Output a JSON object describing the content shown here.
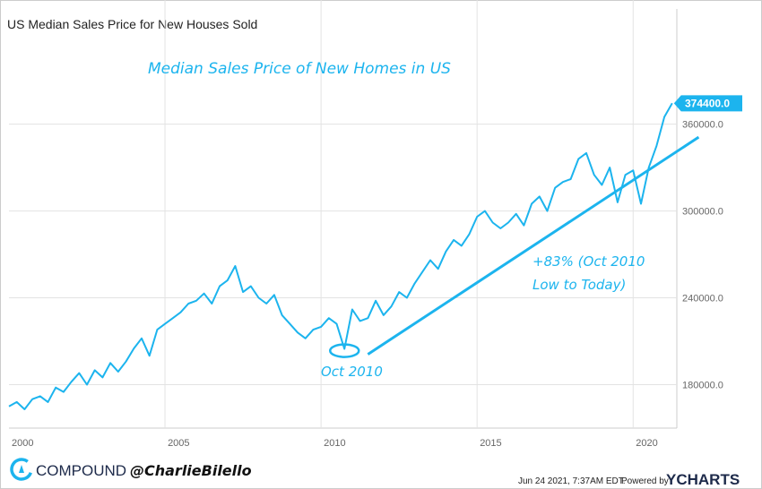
{
  "chart_data": {
    "type": "line",
    "title": "US Median Sales Price for New Houses Sold",
    "xlabel": "",
    "ylabel": "",
    "xlim": [
      2000,
      2021.4
    ],
    "ylim": [
      150000,
      421000
    ],
    "grid": true,
    "x_ticks": [
      "2000",
      "2005",
      "2010",
      "2015",
      "2020"
    ],
    "y_ticks": [
      "180000.0",
      "240000.0",
      "300000.0",
      "360000.0"
    ],
    "y_axis_side": "right",
    "line_color": "#1cb4ee",
    "x_start": 2000,
    "x_step_years": 0.25,
    "values": [
      165000,
      168000,
      163000,
      170000,
      172000,
      168000,
      178000,
      175000,
      182000,
      188000,
      180000,
      190000,
      185000,
      195000,
      189000,
      196000,
      205000,
      212000,
      200000,
      218000,
      222000,
      226000,
      230000,
      236000,
      238000,
      243000,
      236000,
      248000,
      252000,
      262000,
      244000,
      248000,
      240000,
      236000,
      242000,
      228000,
      222000,
      216000,
      212000,
      218000,
      220000,
      226000,
      222000,
      204700,
      232000,
      224000,
      226000,
      238000,
      228000,
      234000,
      244000,
      240000,
      250000,
      258000,
      266000,
      260000,
      272000,
      280000,
      276000,
      284000,
      296000,
      300000,
      292000,
      288000,
      292000,
      298000,
      290000,
      305000,
      310000,
      300000,
      316000,
      320000,
      322000,
      336000,
      340000,
      325000,
      318000,
      330000,
      306000,
      325000,
      328000,
      305000,
      330000,
      345000,
      365000,
      374400
    ],
    "last_value_label": "374400.0",
    "annotations": {
      "headline": "Median Sales Price of New Homes in US",
      "low_label": "Oct 2010",
      "low_point": {
        "x": 2010.75,
        "y": 204700
      },
      "trend_label_line1": "+83% (Oct 2010",
      "trend_label_line2": "Low to Today)",
      "trendline": [
        {
          "x": 2011.5,
          "y": 201000
        },
        {
          "x": 2022.1,
          "y": 351000
        }
      ]
    }
  },
  "footer": {
    "brand": "COMPOUND",
    "handle": "@CharlieBilello",
    "timestamp": "Jun 24 2021, 7:37AM EDT.",
    "powered_by": "Powered by",
    "ycharts": "YCHARTS"
  }
}
